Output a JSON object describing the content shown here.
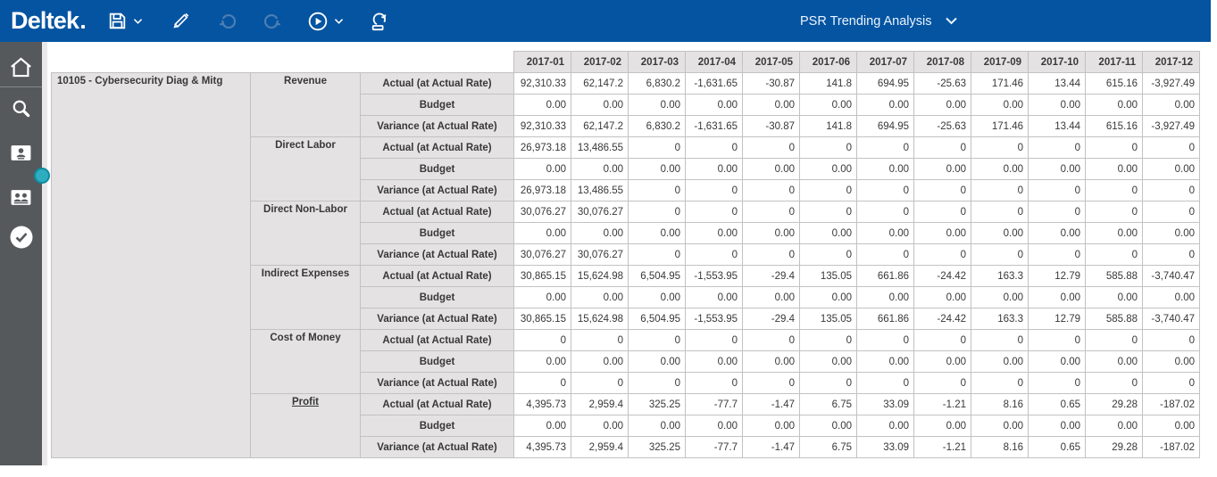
{
  "toolbar": {
    "brand": "Deltek",
    "view_title": "PSR Trending Analysis",
    "icons": [
      "save-icon",
      "chevron-down-icon",
      "edit-pencil-icon",
      "undo-icon",
      "redo-icon",
      "run-icon",
      "chevron-down-icon",
      "export-icon"
    ],
    "view_selector_icon": "chevron-down-icon"
  },
  "sidebar": {
    "icons": [
      "home-icon",
      "search-icon",
      "employee-badge-icon",
      "team-badge-icon",
      "clock-check-icon"
    ],
    "splitter_handle": "pane-resize-handle"
  },
  "colors": {
    "toolbar_blue": "#0554A1",
    "disabled_icon_blue": "#4C7FB4",
    "sidebar_gray": "#56595C",
    "handle_teal": "#2FADC0",
    "handle_teal_ring": "#0E8BA1",
    "header_cell_bg": "#E4E2E2",
    "grid_border": "#C2C2C2"
  },
  "table": {
    "project_label": "10105 - Cybersecurity Diag & Mitg",
    "months": [
      "2017-01",
      "2017-02",
      "2017-03",
      "2017-04",
      "2017-05",
      "2017-06",
      "2017-07",
      "2017-08",
      "2017-09",
      "2017-10",
      "2017-11",
      "2017-12"
    ],
    "sections": [
      {
        "category": "Revenue",
        "rows": [
          {
            "label": "Actual (at Actual Rate)",
            "values": [
              "92,310.33",
              "62,147.2",
              "6,830.2",
              "-1,631.65",
              "-30.87",
              "141.8",
              "694.95",
              "-25.63",
              "171.46",
              "13.44",
              "615.16",
              "-3,927.49"
            ]
          },
          {
            "label": "Budget",
            "values": [
              "0.00",
              "0.00",
              "0.00",
              "0.00",
              "0.00",
              "0.00",
              "0.00",
              "0.00",
              "0.00",
              "0.00",
              "0.00",
              "0.00"
            ]
          },
          {
            "label": "Variance (at Actual Rate)",
            "values": [
              "92,310.33",
              "62,147.2",
              "6,830.2",
              "-1,631.65",
              "-30.87",
              "141.8",
              "694.95",
              "-25.63",
              "171.46",
              "13.44",
              "615.16",
              "-3,927.49"
            ]
          }
        ]
      },
      {
        "category": "Direct Labor",
        "rows": [
          {
            "label": "Actual (at Actual Rate)",
            "values": [
              "26,973.18",
              "13,486.55",
              "0",
              "0",
              "0",
              "0",
              "0",
              "0",
              "0",
              "0",
              "0",
              "0"
            ]
          },
          {
            "label": "Budget",
            "values": [
              "0.00",
              "0.00",
              "0.00",
              "0.00",
              "0.00",
              "0.00",
              "0.00",
              "0.00",
              "0.00",
              "0.00",
              "0.00",
              "0.00"
            ]
          },
          {
            "label": "Variance (at Actual Rate)",
            "values": [
              "26,973.18",
              "13,486.55",
              "0",
              "0",
              "0",
              "0",
              "0",
              "0",
              "0",
              "0",
              "0",
              "0"
            ]
          }
        ]
      },
      {
        "category": "Direct Non-Labor",
        "rows": [
          {
            "label": "Actual (at Actual Rate)",
            "values": [
              "30,076.27",
              "30,076.27",
              "0",
              "0",
              "0",
              "0",
              "0",
              "0",
              "0",
              "0",
              "0",
              "0"
            ]
          },
          {
            "label": "Budget",
            "values": [
              "0.00",
              "0.00",
              "0.00",
              "0.00",
              "0.00",
              "0.00",
              "0.00",
              "0.00",
              "0.00",
              "0.00",
              "0.00",
              "0.00"
            ]
          },
          {
            "label": "Variance (at Actual Rate)",
            "values": [
              "30,076.27",
              "30,076.27",
              "0",
              "0",
              "0",
              "0",
              "0",
              "0",
              "0",
              "0",
              "0",
              "0"
            ]
          }
        ]
      },
      {
        "category": "Indirect Expenses",
        "rows": [
          {
            "label": "Actual (at Actual Rate)",
            "values": [
              "30,865.15",
              "15,624.98",
              "6,504.95",
              "-1,553.95",
              "-29.4",
              "135.05",
              "661.86",
              "-24.42",
              "163.3",
              "12.79",
              "585.88",
              "-3,740.47"
            ]
          },
          {
            "label": "Budget",
            "values": [
              "0.00",
              "0.00",
              "0.00",
              "0.00",
              "0.00",
              "0.00",
              "0.00",
              "0.00",
              "0.00",
              "0.00",
              "0.00",
              "0.00"
            ]
          },
          {
            "label": "Variance (at Actual Rate)",
            "values": [
              "30,865.15",
              "15,624.98",
              "6,504.95",
              "-1,553.95",
              "-29.4",
              "135.05",
              "661.86",
              "-24.42",
              "163.3",
              "12.79",
              "585.88",
              "-3,740.47"
            ]
          }
        ]
      },
      {
        "category": "Cost of Money",
        "rows": [
          {
            "label": "Actual (at Actual Rate)",
            "values": [
              "0",
              "0",
              "0",
              "0",
              "0",
              "0",
              "0",
              "0",
              "0",
              "0",
              "0",
              "0"
            ]
          },
          {
            "label": "Budget",
            "values": [
              "0.00",
              "0.00",
              "0.00",
              "0.00",
              "0.00",
              "0.00",
              "0.00",
              "0.00",
              "0.00",
              "0.00",
              "0.00",
              "0.00"
            ]
          },
          {
            "label": "Variance (at Actual Rate)",
            "values": [
              "0",
              "0",
              "0",
              "0",
              "0",
              "0",
              "0",
              "0",
              "0",
              "0",
              "0",
              "0"
            ]
          }
        ]
      },
      {
        "category": "Profit",
        "underline": true,
        "rows": [
          {
            "label": "Actual (at Actual Rate)",
            "values": [
              "4,395.73",
              "2,959.4",
              "325.25",
              "-77.7",
              "-1.47",
              "6.75",
              "33.09",
              "-1.21",
              "8.16",
              "0.65",
              "29.28",
              "-187.02"
            ]
          },
          {
            "label": "Budget",
            "values": [
              "0.00",
              "0.00",
              "0.00",
              "0.00",
              "0.00",
              "0.00",
              "0.00",
              "0.00",
              "0.00",
              "0.00",
              "0.00",
              "0.00"
            ]
          },
          {
            "label": "Variance (at Actual Rate)",
            "values": [
              "4,395.73",
              "2,959.4",
              "325.25",
              "-77.7",
              "-1.47",
              "6.75",
              "33.09",
              "-1.21",
              "8.16",
              "0.65",
              "29.28",
              "-187.02"
            ]
          }
        ]
      }
    ]
  }
}
